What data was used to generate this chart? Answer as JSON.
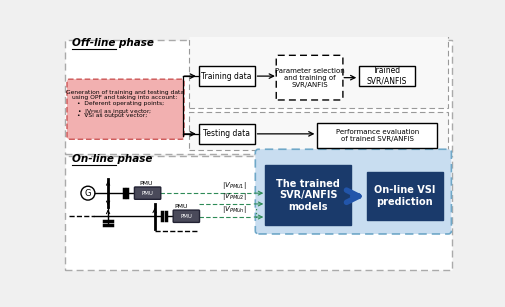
{
  "fig_width": 5.05,
  "fig_height": 3.07,
  "dpi": 100,
  "offline_title": "Off-line phase",
  "online_title": "On-line phase",
  "dark_blue": "#1a3a6b",
  "training_box_text": "Training data",
  "param_box_text": "Parameter selection\nand training of\nSVR/ANFIS",
  "trained_box_text": "Trained\nSVR/ANFIS",
  "testing_box_text": "Testing data",
  "perf_box_text": "Performance evaluation\nof trained SVR/ANFIS",
  "svr_box_text": "The trained\nSVR/ANFIS\nmodels",
  "vsi_box_text": "On-line VSI\nprediction",
  "pmu_label1": "|V$_{PMU1}$|",
  "pmu_label2": "|V$_{PMU2}$|",
  "pmu_label3": "|V$_{PMUn}$|",
  "green_color": "#2e8b57",
  "light_blue_container": "#c8ddf0",
  "container_border": "#6fa8c8"
}
